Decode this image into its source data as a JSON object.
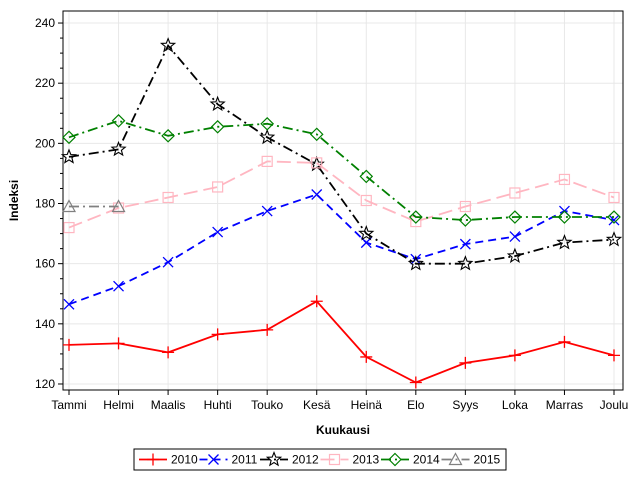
{
  "chart_data": {
    "type": "line",
    "title": "",
    "xlabel": "Kuukausi",
    "ylabel": "Indeksi",
    "categories": [
      "Tammi",
      "Helmi",
      "Maalis",
      "Huhti",
      "Touko",
      "Kesä",
      "Heinä",
      "Elo",
      "Syys",
      "Loka",
      "Marras",
      "Joulu"
    ],
    "ylim": [
      118,
      244
    ],
    "yticks": [
      120,
      140,
      160,
      180,
      200,
      220,
      240
    ],
    "grid": true,
    "legend_position": "bottom",
    "series": [
      {
        "name": "2010",
        "color": "#ff0000",
        "marker": "plus",
        "dash": "solid",
        "values": [
          133,
          133.5,
          130.5,
          136.5,
          138,
          147.5,
          129,
          120.5,
          127,
          129.5,
          134,
          129.5
        ]
      },
      {
        "name": "2011",
        "color": "#0000ff",
        "marker": "x",
        "dash": "dashed",
        "values": [
          146.5,
          152.5,
          160.5,
          170.5,
          177.5,
          183,
          167,
          161.5,
          166.5,
          169,
          177.5,
          174.5
        ]
      },
      {
        "name": "2012",
        "color": "#000000",
        "marker": "star",
        "dash": "dashdot",
        "values": [
          195.5,
          198,
          232.5,
          213,
          202,
          193,
          170,
          160,
          160,
          162.5,
          167,
          168
        ]
      },
      {
        "name": "2013",
        "color": "#ffb6c1",
        "marker": "square",
        "dash": "longdash",
        "values": [
          172,
          178.5,
          182,
          185.5,
          194,
          193.5,
          181,
          174,
          179,
          183.5,
          188,
          182
        ]
      },
      {
        "name": "2014",
        "color": "#008000",
        "marker": "diamond",
        "dash": "dashdot",
        "values": [
          202,
          207.5,
          202.5,
          205.5,
          206.5,
          203,
          189,
          175.5,
          174.5,
          175.5,
          175.5,
          175.5
        ]
      },
      {
        "name": "2015",
        "color": "#808080",
        "marker": "triangle",
        "dash": "dashdot",
        "values": [
          179,
          179,
          null,
          null,
          null,
          null,
          null,
          null,
          null,
          null,
          null,
          null
        ]
      }
    ]
  }
}
